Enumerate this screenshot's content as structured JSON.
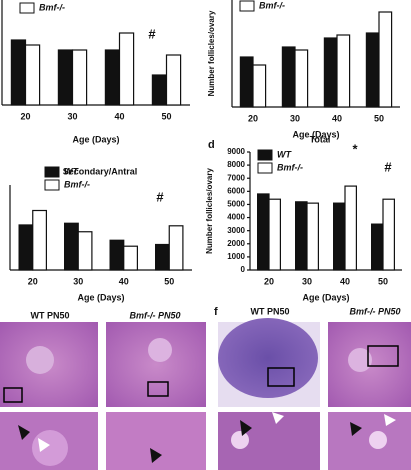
{
  "chart_data": [
    {
      "type": "bar",
      "categories": [
        "20",
        "30",
        "40",
        "50"
      ],
      "xlabel": "Age (Days)",
      "series": [
        {
          "color": "#111111",
          "values": [
            65,
            55,
            55,
            30
          ]
        },
        {
          "name": "Bmf-/-",
          "color": "#ffffff",
          "values": [
            60,
            55,
            72,
            50
          ]
        }
      ],
      "ylim": [
        0,
        105
      ],
      "annotations": [
        "#"
      ]
    },
    {
      "type": "bar",
      "categories": [
        "20",
        "30",
        "40",
        "50"
      ],
      "xlabel": "Age (Days)",
      "ylabel": "Number follicles/ovary",
      "series": [
        {
          "color": "#111111",
          "values": [
            500,
            600,
            690,
            740
          ]
        },
        {
          "name": "Bmf-/-",
          "color": "#ffffff",
          "values": [
            420,
            570,
            720,
            950
          ]
        }
      ],
      "ylim": [
        0,
        1070
      ]
    },
    {
      "type": "bar",
      "title": "Secondary/Antral",
      "categories": [
        "20",
        "30",
        "40",
        "50"
      ],
      "xlabel": "Age (Days)",
      "series": [
        {
          "name": "WT",
          "color": "#111111",
          "values": [
            53,
            55,
            35,
            30
          ]
        },
        {
          "name": "Bmf-/-",
          "color": "#ffffff",
          "values": [
            70,
            45,
            28,
            52
          ]
        }
      ],
      "ylim": [
        0,
        100
      ],
      "annotations": [
        "#"
      ]
    },
    {
      "type": "bar",
      "panel": "d",
      "title": "Total",
      "categories": [
        "20",
        "30",
        "40",
        "50"
      ],
      "xlabel": "Age (Days)",
      "ylabel": "Number follicles/ovary",
      "series": [
        {
          "name": "WT",
          "color": "#111111",
          "values": [
            5800,
            5200,
            5100,
            3500
          ]
        },
        {
          "name": "Bmf-/-",
          "color": "#ffffff",
          "values": [
            5400,
            5100,
            6400,
            5400
          ]
        }
      ],
      "ylim": [
        0,
        9000
      ],
      "yticks": [
        0,
        1000,
        2000,
        3000,
        4000,
        5000,
        6000,
        7000,
        8000,
        9000
      ],
      "annotations": [
        "*",
        "#"
      ]
    }
  ],
  "images": {
    "left": [
      "WT PN50",
      "Bmf-/- PN50"
    ],
    "panel": "f",
    "right": [
      "WT PN50",
      "Bmf-/- PN50"
    ]
  }
}
